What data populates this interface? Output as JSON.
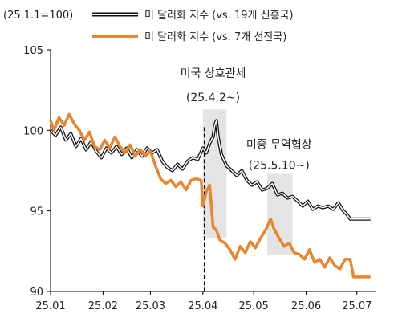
{
  "chart_data": {
    "type": "line",
    "ylabel": "(25.1.1=100)",
    "ylim": [
      90,
      105
    ],
    "yticks": [
      "105",
      "100",
      "95",
      "90"
    ],
    "ytick_values": [
      105,
      100,
      95,
      90
    ],
    "x_start": "2025-01-01",
    "x_end": "2025-07-12",
    "xticks": [
      "25.01",
      "25.02",
      "25.03",
      "25.04",
      "25.05",
      "25.06",
      "25.07"
    ],
    "xtick_dates": [
      "2025-01-01",
      "2025-02-01",
      "2025-03-01",
      "2025-04-01",
      "2025-05-01",
      "2025-06-01",
      "2025-07-01"
    ],
    "grid": false,
    "legend_position": "top-left",
    "series": [
      {
        "name": "미 달러화 지수 (vs. 19개 신흥국)",
        "color": "#111111",
        "style": "double-outline",
        "points": [
          [
            "2025-01-01",
            100.0
          ],
          [
            "2025-01-04",
            99.7
          ],
          [
            "2025-01-07",
            100.2
          ],
          [
            "2025-01-10",
            99.4
          ],
          [
            "2025-01-13",
            99.8
          ],
          [
            "2025-01-16",
            99.0
          ],
          [
            "2025-01-19",
            99.5
          ],
          [
            "2025-01-22",
            98.8
          ],
          [
            "2025-01-25",
            99.3
          ],
          [
            "2025-01-28",
            98.7
          ],
          [
            "2025-01-31",
            98.3
          ],
          [
            "2025-02-03",
            98.9
          ],
          [
            "2025-02-06",
            98.6
          ],
          [
            "2025-02-09",
            99.0
          ],
          [
            "2025-02-12",
            98.5
          ],
          [
            "2025-02-15",
            98.9
          ],
          [
            "2025-02-18",
            98.3
          ],
          [
            "2025-02-21",
            98.8
          ],
          [
            "2025-02-24",
            98.4
          ],
          [
            "2025-02-27",
            98.9
          ],
          [
            "2025-03-02",
            98.6
          ],
          [
            "2025-03-05",
            98.8
          ],
          [
            "2025-03-08",
            98.1
          ],
          [
            "2025-03-11",
            97.7
          ],
          [
            "2025-03-14",
            97.5
          ],
          [
            "2025-03-17",
            97.9
          ],
          [
            "2025-03-20",
            97.6
          ],
          [
            "2025-03-23",
            98.1
          ],
          [
            "2025-03-26",
            98.3
          ],
          [
            "2025-03-29",
            98.2
          ],
          [
            "2025-04-01",
            98.9
          ],
          [
            "2025-04-03",
            98.6
          ],
          [
            "2025-04-05",
            99.2
          ],
          [
            "2025-04-07",
            99.6
          ],
          [
            "2025-04-08",
            100.3
          ],
          [
            "2025-04-09",
            100.6
          ],
          [
            "2025-04-10",
            99.6
          ],
          [
            "2025-04-12",
            98.5
          ],
          [
            "2025-04-15",
            97.8
          ],
          [
            "2025-04-18",
            97.5
          ],
          [
            "2025-04-21",
            97.2
          ],
          [
            "2025-04-24",
            97.5
          ],
          [
            "2025-04-27",
            96.9
          ],
          [
            "2025-04-30",
            96.6
          ],
          [
            "2025-05-03",
            96.8
          ],
          [
            "2025-05-06",
            96.3
          ],
          [
            "2025-05-09",
            96.4
          ],
          [
            "2025-05-12",
            96.7
          ],
          [
            "2025-05-15",
            96.0
          ],
          [
            "2025-05-18",
            96.1
          ],
          [
            "2025-05-21",
            95.8
          ],
          [
            "2025-05-24",
            95.9
          ],
          [
            "2025-05-27",
            95.6
          ],
          [
            "2025-05-30",
            95.3
          ],
          [
            "2025-06-02",
            95.6
          ],
          [
            "2025-06-05",
            95.1
          ],
          [
            "2025-06-08",
            95.3
          ],
          [
            "2025-06-11",
            95.2
          ],
          [
            "2025-06-14",
            95.3
          ],
          [
            "2025-06-17",
            95.1
          ],
          [
            "2025-06-20",
            95.5
          ],
          [
            "2025-06-23",
            95.0
          ],
          [
            "2025-06-25",
            94.8
          ],
          [
            "2025-06-27",
            94.5
          ],
          [
            "2025-07-01",
            94.5
          ],
          [
            "2025-07-05",
            94.5
          ],
          [
            "2025-07-09",
            94.5
          ]
        ]
      },
      {
        "name": "미 달러화 지수 (vs. 7개 선진국)",
        "color": "#E8852E",
        "style": "solid",
        "points": [
          [
            "2025-01-01",
            100.6
          ],
          [
            "2025-01-03",
            100.0
          ],
          [
            "2025-01-06",
            100.8
          ],
          [
            "2025-01-09",
            100.3
          ],
          [
            "2025-01-12",
            101.0
          ],
          [
            "2025-01-15",
            100.4
          ],
          [
            "2025-01-18",
            100.0
          ],
          [
            "2025-01-21",
            99.4
          ],
          [
            "2025-01-24",
            99.9
          ],
          [
            "2025-01-27",
            99.0
          ],
          [
            "2025-01-30",
            98.8
          ],
          [
            "2025-02-02",
            99.4
          ],
          [
            "2025-02-05",
            98.9
          ],
          [
            "2025-02-08",
            99.6
          ],
          [
            "2025-02-11",
            99.0
          ],
          [
            "2025-02-14",
            98.6
          ],
          [
            "2025-02-17",
            99.1
          ],
          [
            "2025-02-20",
            98.4
          ],
          [
            "2025-02-23",
            98.8
          ],
          [
            "2025-02-26",
            98.4
          ],
          [
            "2025-03-01",
            98.7
          ],
          [
            "2025-03-04",
            97.8
          ],
          [
            "2025-03-07",
            97.0
          ],
          [
            "2025-03-10",
            96.7
          ],
          [
            "2025-03-13",
            96.9
          ],
          [
            "2025-03-16",
            96.5
          ],
          [
            "2025-03-19",
            96.8
          ],
          [
            "2025-03-22",
            96.3
          ],
          [
            "2025-03-25",
            96.9
          ],
          [
            "2025-03-28",
            97.0
          ],
          [
            "2025-03-31",
            96.9
          ],
          [
            "2025-04-01",
            95.3
          ],
          [
            "2025-04-03",
            96.2
          ],
          [
            "2025-04-05",
            96.6
          ],
          [
            "2025-04-07",
            94.0
          ],
          [
            "2025-04-09",
            93.8
          ],
          [
            "2025-04-11",
            93.2
          ],
          [
            "2025-04-14",
            93.0
          ],
          [
            "2025-04-17",
            92.6
          ],
          [
            "2025-04-20",
            92.0
          ],
          [
            "2025-04-23",
            92.8
          ],
          [
            "2025-04-26",
            92.4
          ],
          [
            "2025-04-29",
            93.1
          ],
          [
            "2025-05-02",
            92.7
          ],
          [
            "2025-05-05",
            93.3
          ],
          [
            "2025-05-08",
            93.8
          ],
          [
            "2025-05-11",
            94.5
          ],
          [
            "2025-05-13",
            93.9
          ],
          [
            "2025-05-16",
            93.3
          ],
          [
            "2025-05-19",
            92.8
          ],
          [
            "2025-05-22",
            93.0
          ],
          [
            "2025-05-25",
            92.4
          ],
          [
            "2025-05-28",
            92.3
          ],
          [
            "2025-05-31",
            92.0
          ],
          [
            "2025-06-03",
            92.6
          ],
          [
            "2025-06-06",
            91.8
          ],
          [
            "2025-06-09",
            92.0
          ],
          [
            "2025-06-12",
            91.5
          ],
          [
            "2025-06-15",
            92.1
          ],
          [
            "2025-06-18",
            91.6
          ],
          [
            "2025-06-21",
            91.4
          ],
          [
            "2025-06-24",
            92.0
          ],
          [
            "2025-06-27",
            92.0
          ],
          [
            "2025-06-29",
            90.9
          ],
          [
            "2025-07-03",
            90.9
          ],
          [
            "2025-07-09",
            90.9
          ]
        ]
      }
    ],
    "shaded_regions": [
      {
        "start": "2025-04-01",
        "end": "2025-04-15",
        "y_low": 93.3,
        "y_high": 101.3
      },
      {
        "start": "2025-05-09",
        "end": "2025-05-24",
        "y_low": 92.3,
        "y_high": 97.3
      }
    ],
    "vline": {
      "date": "2025-04-02",
      "style": "dashed"
    },
    "annotations": [
      {
        "line1": "미국 상호관세",
        "line2": "(25.4.2~)",
        "date": "2025-04-07",
        "y1": 103.3,
        "y2": 101.8
      },
      {
        "line1": "미중 무역협상",
        "line2": "(25.5.10~)",
        "date": "2025-05-16",
        "y1": 98.9,
        "y2": 97.6
      }
    ]
  }
}
